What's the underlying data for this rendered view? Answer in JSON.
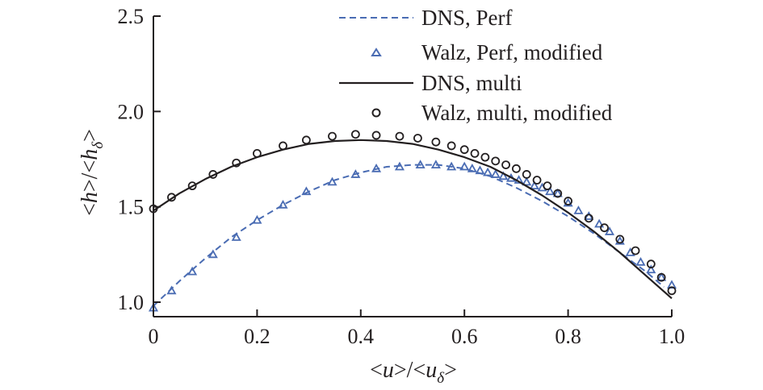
{
  "chart_data": {
    "type": "line",
    "title": "",
    "xlabel": "<u>/<uδ>",
    "xlabel_parts": {
      "open": "<",
      "var": "u",
      "mid": ">/<",
      "var2": "u",
      "sub": "δ",
      "close": ">"
    },
    "ylabel": "<h>/<hδ>",
    "ylabel_parts": {
      "open": "<",
      "var": "h",
      "mid": ">/<",
      "var2": "h",
      "sub": "δ",
      "close": ">"
    },
    "xlim": [
      0,
      1.0
    ],
    "ylim": [
      0.95,
      2.5
    ],
    "xticks": [
      0,
      0.2,
      0.4,
      0.6,
      0.8,
      1.0
    ],
    "xtick_labels": [
      "0",
      "0.2",
      "0.4",
      "0.6",
      "0.8",
      "1.0"
    ],
    "yticks": [
      1.0,
      1.5,
      2.0,
      2.5
    ],
    "ytick_labels": [
      "1.0",
      "1.5",
      "2.0",
      "2.5"
    ],
    "grid": false,
    "legend_position": "top-center",
    "series": [
      {
        "name": "DNS, Perf",
        "style": "dashed-line",
        "color": "#4a6cb3",
        "x": [
          0,
          0.05,
          0.1,
          0.15,
          0.2,
          0.25,
          0.3,
          0.35,
          0.4,
          0.45,
          0.5,
          0.55,
          0.6,
          0.65,
          0.7,
          0.75,
          0.8,
          0.85,
          0.9,
          0.95,
          0.985
        ],
        "y": [
          0.98,
          1.11,
          1.23,
          1.34,
          1.43,
          1.51,
          1.58,
          1.64,
          1.68,
          1.71,
          1.72,
          1.72,
          1.7,
          1.66,
          1.6,
          1.53,
          1.45,
          1.36,
          1.26,
          1.16,
          1.08
        ]
      },
      {
        "name": "Walz, Perf, modified",
        "style": "triangle-markers",
        "color": "#4a6cb3",
        "x": [
          0,
          0.035,
          0.075,
          0.115,
          0.16,
          0.2,
          0.25,
          0.295,
          0.345,
          0.39,
          0.43,
          0.475,
          0.515,
          0.545,
          0.575,
          0.6,
          0.615,
          0.63,
          0.645,
          0.66,
          0.675,
          0.69,
          0.705,
          0.72,
          0.735,
          0.75,
          0.765,
          0.78,
          0.8,
          0.82,
          0.84,
          0.86,
          0.88,
          0.9,
          0.92,
          0.94,
          0.96,
          0.98,
          1.0
        ],
        "y": [
          0.97,
          1.06,
          1.16,
          1.25,
          1.34,
          1.43,
          1.51,
          1.58,
          1.63,
          1.67,
          1.7,
          1.71,
          1.72,
          1.72,
          1.71,
          1.71,
          1.7,
          1.69,
          1.68,
          1.67,
          1.66,
          1.65,
          1.64,
          1.63,
          1.61,
          1.6,
          1.58,
          1.57,
          1.52,
          1.48,
          1.45,
          1.41,
          1.37,
          1.32,
          1.26,
          1.21,
          1.17,
          1.13,
          1.09
        ]
      },
      {
        "name": "DNS, multi",
        "style": "solid-line",
        "color": "#231f20",
        "x": [
          0,
          0.05,
          0.1,
          0.15,
          0.2,
          0.25,
          0.3,
          0.35,
          0.4,
          0.45,
          0.5,
          0.55,
          0.6,
          0.65,
          0.7,
          0.75,
          0.8,
          0.85,
          0.9,
          0.95,
          1.0
        ],
        "y": [
          1.48,
          1.57,
          1.645,
          1.71,
          1.76,
          1.8,
          1.83,
          1.845,
          1.85,
          1.845,
          1.83,
          1.8,
          1.76,
          1.71,
          1.64,
          1.56,
          1.47,
          1.37,
          1.26,
          1.14,
          1.02
        ]
      },
      {
        "name": "Walz, multi, modified",
        "style": "circle-markers",
        "color": "#231f20",
        "x": [
          0,
          0.035,
          0.075,
          0.115,
          0.16,
          0.2,
          0.25,
          0.295,
          0.345,
          0.39,
          0.43,
          0.475,
          0.51,
          0.545,
          0.575,
          0.6,
          0.62,
          0.64,
          0.66,
          0.68,
          0.7,
          0.72,
          0.74,
          0.76,
          0.78,
          0.8,
          0.84,
          0.87,
          0.9,
          0.93,
          0.96,
          0.98,
          1.0
        ],
        "y": [
          1.49,
          1.55,
          1.61,
          1.67,
          1.73,
          1.78,
          1.82,
          1.85,
          1.87,
          1.88,
          1.875,
          1.87,
          1.86,
          1.84,
          1.82,
          1.8,
          1.78,
          1.76,
          1.74,
          1.72,
          1.7,
          1.67,
          1.64,
          1.61,
          1.57,
          1.53,
          1.44,
          1.39,
          1.33,
          1.27,
          1.2,
          1.13,
          1.06
        ]
      }
    ]
  }
}
